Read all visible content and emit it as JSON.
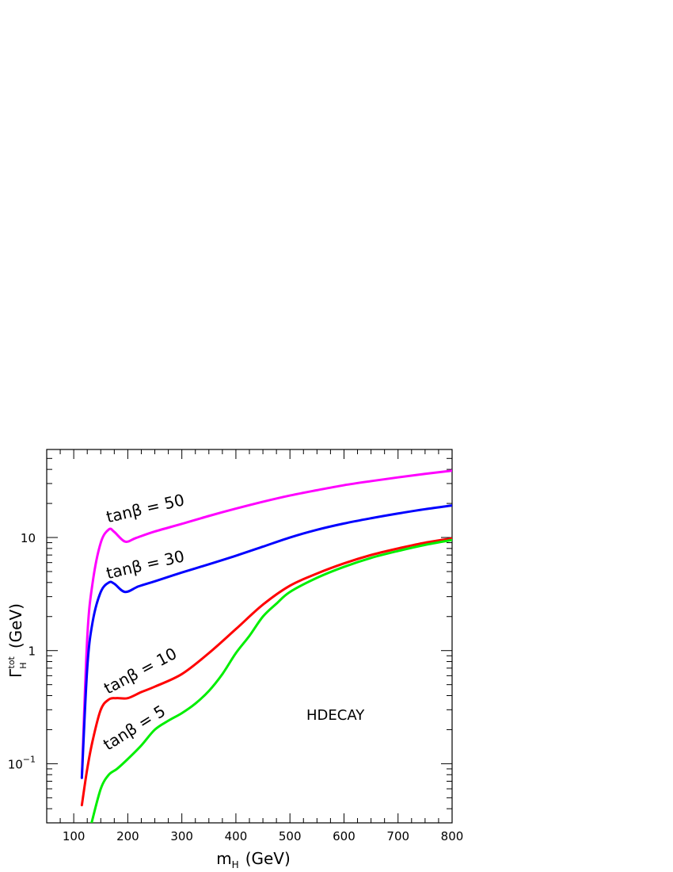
{
  "chart_data": {
    "type": "line",
    "title": "",
    "xlabel": "m",
    "xlabel_sub": "H",
    "xlabel_unit": "(GeV)",
    "ylabel": "Γ",
    "ylabel_sub": "H",
    "ylabel_sup": "tot",
    "ylabel_unit": "(GeV)",
    "xlim": [
      50,
      800
    ],
    "ylim": [
      0.03,
      60
    ],
    "yscale": "log",
    "x_ticks": [
      100,
      200,
      300,
      400,
      500,
      600,
      700,
      800
    ],
    "y_ticks": [
      {
        "value": 0.1,
        "base": "10",
        "exp": "−1"
      },
      {
        "value": 1,
        "base": "1",
        "exp": ""
      },
      {
        "value": 10,
        "base": "10",
        "exp": ""
      }
    ],
    "annotation": "HDECAY",
    "series": [
      {
        "name": "tanβ = 50",
        "color": "#ff00ff",
        "points": [
          [
            115,
            0.075
          ],
          [
            125,
            1.3
          ],
          [
            135,
            4.0
          ],
          [
            150,
            9.0
          ],
          [
            165,
            11.8
          ],
          [
            175,
            11.2
          ],
          [
            195,
            9.2
          ],
          [
            215,
            9.9
          ],
          [
            250,
            11.3
          ],
          [
            300,
            13.2
          ],
          [
            350,
            15.5
          ],
          [
            400,
            18.0
          ],
          [
            450,
            20.7
          ],
          [
            500,
            23.5
          ],
          [
            550,
            26.2
          ],
          [
            600,
            29.0
          ],
          [
            650,
            31.5
          ],
          [
            700,
            34.0
          ],
          [
            750,
            36.5
          ],
          [
            800,
            39.0
          ]
        ]
      },
      {
        "name": "tanβ = 30",
        "color": "#0000ff",
        "points": [
          [
            115,
            0.075
          ],
          [
            125,
            0.7
          ],
          [
            135,
            1.8
          ],
          [
            150,
            3.3
          ],
          [
            165,
            4.0
          ],
          [
            175,
            3.9
          ],
          [
            195,
            3.3
          ],
          [
            220,
            3.7
          ],
          [
            250,
            4.1
          ],
          [
            300,
            4.9
          ],
          [
            350,
            5.8
          ],
          [
            400,
            6.9
          ],
          [
            450,
            8.3
          ],
          [
            500,
            10.0
          ],
          [
            550,
            11.7
          ],
          [
            600,
            13.3
          ],
          [
            650,
            14.8
          ],
          [
            700,
            16.3
          ],
          [
            750,
            17.8
          ],
          [
            800,
            19.2
          ]
        ]
      },
      {
        "name": "tanβ = 10",
        "color": "#ff0000",
        "points": [
          [
            115,
            0.043
          ],
          [
            125,
            0.09
          ],
          [
            135,
            0.16
          ],
          [
            150,
            0.3
          ],
          [
            165,
            0.37
          ],
          [
            180,
            0.38
          ],
          [
            200,
            0.38
          ],
          [
            225,
            0.43
          ],
          [
            250,
            0.48
          ],
          [
            300,
            0.62
          ],
          [
            350,
            0.95
          ],
          [
            400,
            1.55
          ],
          [
            450,
            2.55
          ],
          [
            500,
            3.75
          ],
          [
            550,
            4.8
          ],
          [
            600,
            5.9
          ],
          [
            650,
            7.0
          ],
          [
            700,
            8.0
          ],
          [
            750,
            9.0
          ],
          [
            800,
            9.8
          ]
        ]
      },
      {
        "name": "tanβ = 5",
        "color": "#00ee00",
        "points": [
          [
            133,
            0.03
          ],
          [
            150,
            0.06
          ],
          [
            165,
            0.08
          ],
          [
            180,
            0.09
          ],
          [
            200,
            0.11
          ],
          [
            225,
            0.145
          ],
          [
            250,
            0.2
          ],
          [
            275,
            0.24
          ],
          [
            300,
            0.28
          ],
          [
            325,
            0.34
          ],
          [
            350,
            0.44
          ],
          [
            375,
            0.62
          ],
          [
            400,
            0.95
          ],
          [
            425,
            1.35
          ],
          [
            450,
            2.0
          ],
          [
            475,
            2.6
          ],
          [
            500,
            3.3
          ],
          [
            550,
            4.4
          ],
          [
            600,
            5.5
          ],
          [
            650,
            6.6
          ],
          [
            700,
            7.6
          ],
          [
            750,
            8.6
          ],
          [
            800,
            9.5
          ]
        ]
      }
    ],
    "curve_labels": [
      {
        "series": 0,
        "text": "tanβ = 50",
        "at_x": 163,
        "at_y": 13.5,
        "rotate": -13
      },
      {
        "series": 1,
        "text": "tanβ = 30",
        "at_x": 163,
        "at_y": 4.3,
        "rotate": -13
      },
      {
        "series": 2,
        "text": "tanβ = 10",
        "at_x": 163,
        "at_y": 0.41,
        "rotate": -28
      },
      {
        "series": 3,
        "text": "tanβ = 5",
        "at_x": 163,
        "at_y": 0.13,
        "rotate": -32
      }
    ]
  }
}
